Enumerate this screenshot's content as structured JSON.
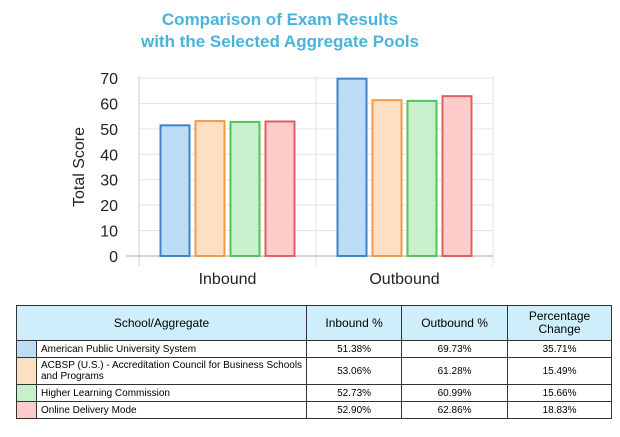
{
  "chart_data": {
    "type": "bar",
    "title": [
      "Comparison of Exam Results",
      "with the Selected Aggregate Pools"
    ],
    "ylabel": "Total Score",
    "xlabel": "",
    "ylim": [
      0,
      70
    ],
    "yticks": [
      0,
      10,
      20,
      30,
      40,
      50,
      60,
      70
    ],
    "grid": true,
    "categories": [
      "Inbound",
      "Outbound"
    ],
    "series": [
      {
        "name": "American Public University System",
        "values": [
          51.38,
          69.73
        ],
        "fill": "#bddcf5",
        "stroke": "#3f83c9"
      },
      {
        "name": "ACBSP (U.S.) - Accreditation Council for Business Schools and Programs",
        "values": [
          53.06,
          61.28
        ],
        "fill": "#fde0c3",
        "stroke": "#f09b4a"
      },
      {
        "name": "Higher Learning Commission",
        "values": [
          52.73,
          60.99
        ],
        "fill": "#c9f0cc",
        "stroke": "#52c25a"
      },
      {
        "name": "Online Delivery Mode",
        "values": [
          52.9,
          62.86
        ],
        "fill": "#ffcccc",
        "stroke": "#e06060"
      }
    ]
  },
  "table": {
    "headers": [
      "School/Aggregate",
      "Inbound %",
      "Outbound %",
      "Percentage Change"
    ],
    "rows": [
      {
        "name": "American Public University System",
        "inbound": "51.38%",
        "outbound": "69.73%",
        "change": "35.71%",
        "color": "#bddcf5"
      },
      {
        "name": "ACBSP (U.S.) - Accreditation Council for Business Schools and Programs",
        "inbound": "53.06%",
        "outbound": "61.28%",
        "change": "15.49%",
        "color": "#fde0c3"
      },
      {
        "name": "Higher Learning Commission",
        "inbound": "52.73%",
        "outbound": "60.99%",
        "change": "15.66%",
        "color": "#c9f0cc"
      },
      {
        "name": "Online Delivery Mode",
        "inbound": "52.90%",
        "outbound": "62.86%",
        "change": "18.83%",
        "color": "#ffcccc"
      }
    ]
  }
}
